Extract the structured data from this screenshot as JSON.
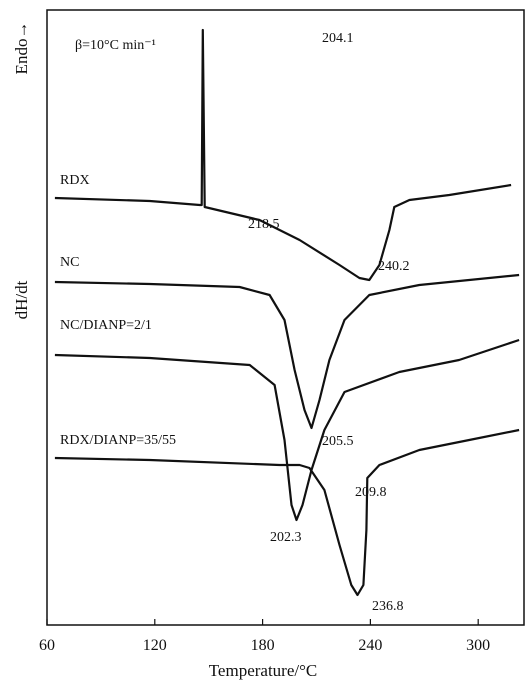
{
  "chart_data": {
    "type": "line",
    "x_label": "Temperature/°C",
    "y_label": "dH/dt",
    "y_direction_label": "Endo→",
    "xlim": [
      60,
      325.5
    ],
    "xticks": [
      60,
      120,
      180,
      240,
      300
    ],
    "ylim": [
      0,
      615
    ],
    "color": "#111111",
    "series": [
      {
        "name": "RDX",
        "x": [
          64.4,
          117.2,
          145.0,
          146.1,
          146.7,
          147.8,
          178.3,
          200.6,
          222.8,
          233.9,
          239.4,
          245.0,
          250.6,
          253.3,
          261.7,
          283.9,
          318.3
        ],
        "values": [
          427,
          424,
          420,
          420,
          595,
          418,
          405,
          385,
          360,
          347,
          345,
          360,
          395,
          418,
          425,
          430,
          440
        ]
      },
      {
        "name": "NC",
        "x": [
          64.4,
          117.2,
          167.2,
          183.9,
          192.2,
          197.8,
          203.3,
          207.2,
          211.7,
          217.2,
          225.6,
          239.4,
          267.2,
          322.8
        ],
        "values": [
          343,
          341,
          338,
          330,
          305,
          255,
          215,
          197,
          225,
          265,
          305,
          330,
          340,
          350
        ]
      },
      {
        "name": "NC/DIANP=2/1",
        "x": [
          64.4,
          117.2,
          172.8,
          186.7,
          192.2,
          196.1,
          198.9,
          202.2,
          207.2,
          214.4,
          225.6,
          256.1,
          289.4,
          322.8
        ],
        "values": [
          270,
          267,
          260,
          240,
          185,
          120,
          105,
          120,
          155,
          195,
          233,
          253,
          265,
          285
        ]
      },
      {
        "name": "RDX/DIANP=35/55",
        "x": [
          64.4,
          117.2,
          189.4,
          200.6,
          206.1,
          214.4,
          222.8,
          229.4,
          232.8,
          236.1,
          237.8,
          238.3,
          245.0,
          267.2,
          295.0,
          322.8
        ],
        "values": [
          167,
          165,
          160,
          160,
          157,
          135,
          80,
          40,
          30,
          40,
          95,
          147,
          160,
          175,
          185,
          195
        ]
      }
    ],
    "annotations": [
      "β=10°C min⁻¹",
      "204.1",
      "218.5",
      "240.2",
      "205.5",
      "209.8",
      "202.3",
      "236.8"
    ]
  }
}
